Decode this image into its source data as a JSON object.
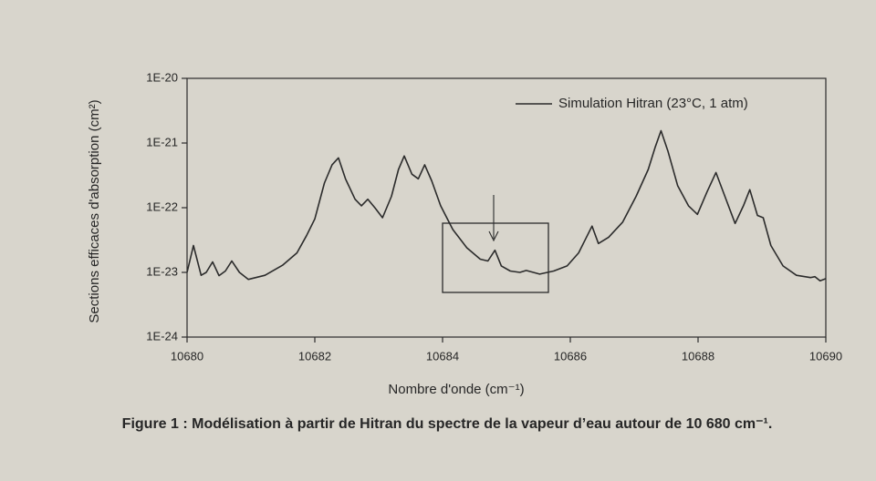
{
  "chart_data": {
    "type": "line",
    "title": "Figure 1 : Modélisation à partir de Hitran du spectre de la vapeur d’eau autour de 10 680 cm⁻¹.",
    "x_label": "Nombre d'onde (cm⁻¹)",
    "y_label": "Sections efficaces d'absorption (cm²)",
    "xlim": [
      10680,
      10690
    ],
    "xticks": [
      10680,
      10682,
      10684,
      10686,
      10688,
      10690
    ],
    "ylim": [
      1e-24,
      1e-20
    ],
    "yticks": [
      {
        "value": 1e-24,
        "label": "1E-24"
      },
      {
        "value": 1e-23,
        "label": "1E-23"
      },
      {
        "value": 1e-22,
        "label": "1E-22"
      },
      {
        "value": 1e-21,
        "label": "1E-21"
      },
      {
        "value": 1e-20,
        "label": "1E-20"
      }
    ],
    "y_scale": "log",
    "legend": "upper right",
    "x": [
      10680,
      10680.1,
      10680.22,
      10680.3,
      10680.4,
      10680.5,
      10680.6,
      10680.7,
      10680.82,
      10680.96,
      10681.22,
      10681.5,
      10681.72,
      10681.87,
      10682.0,
      10682.15,
      10682.27,
      10682.37,
      10682.48,
      10682.63,
      10682.73,
      10682.83,
      10682.94,
      10683.06,
      10683.2,
      10683.31,
      10683.4,
      10683.52,
      10683.62,
      10683.72,
      10683.83,
      10683.97,
      10684.16,
      10684.38,
      10684.59,
      10684.71,
      10684.82,
      10684.92,
      10685.06,
      10685.21,
      10685.31,
      10685.52,
      10685.74,
      10685.95,
      10686.13,
      10686.24,
      10686.34,
      10686.44,
      10686.6,
      10686.82,
      10687.03,
      10687.22,
      10687.33,
      10687.42,
      10687.53,
      10687.68,
      10687.85,
      10687.99,
      10688.14,
      10688.28,
      10688.42,
      10688.58,
      10688.71,
      10688.81,
      10688.93,
      10689.02,
      10689.14,
      10689.33,
      10689.54,
      10689.76,
      10689.83,
      10689.91,
      10690
    ],
    "series": [
      {
        "name": "Simulation Hitran (23°C, 1 atm)",
        "color": "#2b2b2b",
        "values": [
          1e-23,
          2.6e-23,
          9e-24,
          1e-23,
          1.45e-23,
          8.9e-24,
          1.05e-23,
          1.5e-23,
          1e-23,
          7.8e-24,
          9e-24,
          1.3e-23,
          2e-23,
          3.7e-23,
          6.7e-23,
          2.4e-22,
          4.6e-22,
          5.9e-22,
          2.8e-22,
          1.35e-22,
          1.07e-22,
          1.35e-22,
          1e-22,
          7e-23,
          1.5e-22,
          3.9e-22,
          6.3e-22,
          3.3e-22,
          2.8e-22,
          4.6e-22,
          2.6e-22,
          1.07e-22,
          4.6e-23,
          2.4e-23,
          1.6e-23,
          1.5e-23,
          2.2e-23,
          1.26e-23,
          1.05e-23,
          1e-23,
          1.07e-23,
          9.4e-24,
          1.05e-23,
          1.26e-23,
          2e-23,
          3.3e-23,
          5.2e-23,
          2.8e-23,
          3.5e-23,
          6e-23,
          1.5e-22,
          3.9e-22,
          8.7e-22,
          1.55e-21,
          7.4e-22,
          2.2e-22,
          1.07e-22,
          7.9e-23,
          1.75e-22,
          3.5e-22,
          1.5e-22,
          5.7e-23,
          1.07e-22,
          1.9e-22,
          7.6e-23,
          7e-23,
          2.6e-23,
          1.26e-23,
          9e-24,
          8.3e-24,
          8.6e-24,
          7.4e-24,
          8e-24
        ]
      }
    ]
  }
}
